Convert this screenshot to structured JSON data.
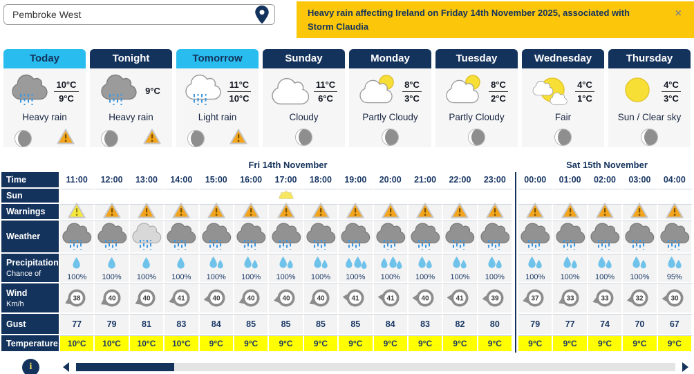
{
  "search": {
    "value": "Pembroke West"
  },
  "banner": {
    "text": "Heavy rain affecting Ireland on Friday 14th November 2025, associated with Storm Claudia",
    "close_label": "×"
  },
  "day_cards": [
    {
      "label": "Today",
      "tab_style": "light",
      "icon": "heavy-rain",
      "high": "10°C",
      "low": "9°C",
      "desc": "Heavy rain",
      "has_warning": true
    },
    {
      "label": "Tonight",
      "tab_style": "dark",
      "icon": "heavy-rain",
      "high": "9°C",
      "low": null,
      "desc": "Heavy rain",
      "has_warning": true
    },
    {
      "label": "Tomorrow",
      "tab_style": "light",
      "icon": "light-rain",
      "high": "11°C",
      "low": "10°C",
      "desc": "Light rain",
      "has_warning": true
    },
    {
      "label": "Sunday",
      "tab_style": "dark",
      "icon": "cloudy",
      "high": "11°C",
      "low": "6°C",
      "desc": "Cloudy",
      "has_warning": false
    },
    {
      "label": "Monday",
      "tab_style": "dark",
      "icon": "partly-cloudy",
      "high": "8°C",
      "low": "3°C",
      "desc": "Partly Cloudy",
      "has_warning": false
    },
    {
      "label": "Tuesday",
      "tab_style": "dark",
      "icon": "partly-cloudy",
      "high": "8°C",
      "low": "2°C",
      "desc": "Partly Cloudy",
      "has_warning": false
    },
    {
      "label": "Wednesday",
      "tab_style": "dark",
      "icon": "fair",
      "high": "4°C",
      "low": "1°C",
      "desc": "Fair",
      "has_warning": false
    },
    {
      "label": "Thursday",
      "tab_style": "dark",
      "icon": "sun",
      "high": "4°C",
      "low": "3°C",
      "desc": "Sun / Clear sky",
      "has_warning": false
    }
  ],
  "table": {
    "row_labels": {
      "time": "Time",
      "sun": "Sun",
      "warnings": "Warnings",
      "weather": "Weather",
      "precipitation": "Precipitation",
      "precipitation_sub": "Chance of",
      "wind": "Wind",
      "wind_sub": "Km/h",
      "gust": "Gust",
      "temperature": "Temperature"
    },
    "day_groups": [
      {
        "label": "Fri 14th November",
        "columns": 13
      },
      {
        "label": "Sat 15th November",
        "columns": 5
      }
    ],
    "columns": [
      {
        "time": "11:00",
        "warning": "yellow",
        "weather": "rain-dark",
        "sun_event": null,
        "drops": 1,
        "precip": "100%",
        "wind": 38,
        "wind_dir_deg": -115,
        "gust": 77,
        "temp": "10°C"
      },
      {
        "time": "12:00",
        "warning": "orange",
        "weather": "rain-dark",
        "sun_event": null,
        "drops": 1,
        "precip": "100%",
        "wind": 40,
        "wind_dir_deg": -120,
        "gust": 79,
        "temp": "10°C"
      },
      {
        "time": "13:00",
        "warning": "orange",
        "weather": "rain-light",
        "sun_event": null,
        "drops": 1,
        "precip": "100%",
        "wind": 40,
        "wind_dir_deg": -118,
        "gust": 81,
        "temp": "10°C"
      },
      {
        "time": "14:00",
        "warning": "orange",
        "weather": "rain-dark",
        "sun_event": null,
        "drops": 1,
        "precip": "100%",
        "wind": 41,
        "wind_dir_deg": -108,
        "gust": 83,
        "temp": "10°C"
      },
      {
        "time": "15:00",
        "warning": "orange",
        "weather": "rain-dark",
        "sun_event": null,
        "drops": 2,
        "precip": "100%",
        "wind": 40,
        "wind_dir_deg": -98,
        "gust": 84,
        "temp": "9°C"
      },
      {
        "time": "16:00",
        "warning": "orange",
        "weather": "rain-dark",
        "sun_event": null,
        "drops": 2,
        "precip": "100%",
        "wind": 40,
        "wind_dir_deg": -112,
        "gust": 85,
        "temp": "9°C"
      },
      {
        "time": "17:00",
        "warning": "orange",
        "weather": "rain-dark",
        "sun_event": "sunset",
        "drops": 2,
        "precip": "100%",
        "wind": 40,
        "wind_dir_deg": -102,
        "gust": 85,
        "temp": "9°C"
      },
      {
        "time": "18:00",
        "warning": "orange",
        "weather": "rain-dark",
        "sun_event": null,
        "drops": 2,
        "precip": "100%",
        "wind": 40,
        "wind_dir_deg": -118,
        "gust": 85,
        "temp": "9°C"
      },
      {
        "time": "19:00",
        "warning": "orange",
        "weather": "rain-dark",
        "sun_event": null,
        "drops": 3,
        "precip": "100%",
        "wind": 41,
        "wind_dir_deg": -85,
        "gust": 85,
        "temp": "9°C"
      },
      {
        "time": "20:00",
        "warning": "orange",
        "weather": "rain-dark",
        "sun_event": null,
        "drops": 3,
        "precip": "100%",
        "wind": 41,
        "wind_dir_deg": -85,
        "gust": 84,
        "temp": "9°C"
      },
      {
        "time": "21:00",
        "warning": "orange",
        "weather": "rain-dark",
        "sun_event": null,
        "drops": 2,
        "precip": "100%",
        "wind": 40,
        "wind_dir_deg": -90,
        "gust": 83,
        "temp": "9°C"
      },
      {
        "time": "22:00",
        "warning": "orange",
        "weather": "rain-dark",
        "sun_event": null,
        "drops": 2,
        "precip": "100%",
        "wind": 41,
        "wind_dir_deg": -88,
        "gust": 82,
        "temp": "9°C"
      },
      {
        "time": "23:00",
        "warning": "orange",
        "weather": "rain-dark",
        "sun_event": null,
        "drops": 2,
        "precip": "100%",
        "wind": 39,
        "wind_dir_deg": -94,
        "gust": 80,
        "temp": "9°C"
      },
      {
        "time": "00:00",
        "warning": "orange",
        "weather": "rain-dark",
        "sun_event": null,
        "drops": 2,
        "precip": "100%",
        "wind": 37,
        "wind_dir_deg": -104,
        "gust": 79,
        "temp": "9°C"
      },
      {
        "time": "01:00",
        "warning": "orange",
        "weather": "rain-dark",
        "sun_event": null,
        "drops": 2,
        "precip": "100%",
        "wind": 33,
        "wind_dir_deg": -114,
        "gust": 77,
        "temp": "9°C"
      },
      {
        "time": "02:00",
        "warning": "orange",
        "weather": "rain-dark",
        "sun_event": null,
        "drops": 2,
        "precip": "100%",
        "wind": 33,
        "wind_dir_deg": -108,
        "gust": 74,
        "temp": "9°C"
      },
      {
        "time": "03:00",
        "warning": "orange",
        "weather": "rain-dark",
        "sun_event": null,
        "drops": 2,
        "precip": "100%",
        "wind": 32,
        "wind_dir_deg": -102,
        "gust": 70,
        "temp": "9°C"
      },
      {
        "time": "04:00",
        "warning": "orange",
        "weather": "rain-dark",
        "sun_event": null,
        "drops": 2,
        "precip": "95%",
        "wind": 30,
        "wind_dir_deg": -94,
        "gust": 67,
        "temp": "9°C"
      }
    ]
  },
  "footer": {
    "info_label": "i"
  },
  "colors": {
    "navy": "#14335C",
    "cyan": "#29BDEF",
    "banner_gold": "#FCC60A",
    "temp_yellow": "#FFFF00",
    "warning_orange": "#F2A41C",
    "warning_yellow": "#F6E83B",
    "rain_blue": "#3F97E0",
    "drop_blue": "#6FC2EA",
    "cloud_dark": "#9B9B9B",
    "cloud_light": "#FFFFFF",
    "sun_yellow": "#F8DF35",
    "wind_gray": "#8C8C8C",
    "row_gray": "#F3F3F3"
  }
}
